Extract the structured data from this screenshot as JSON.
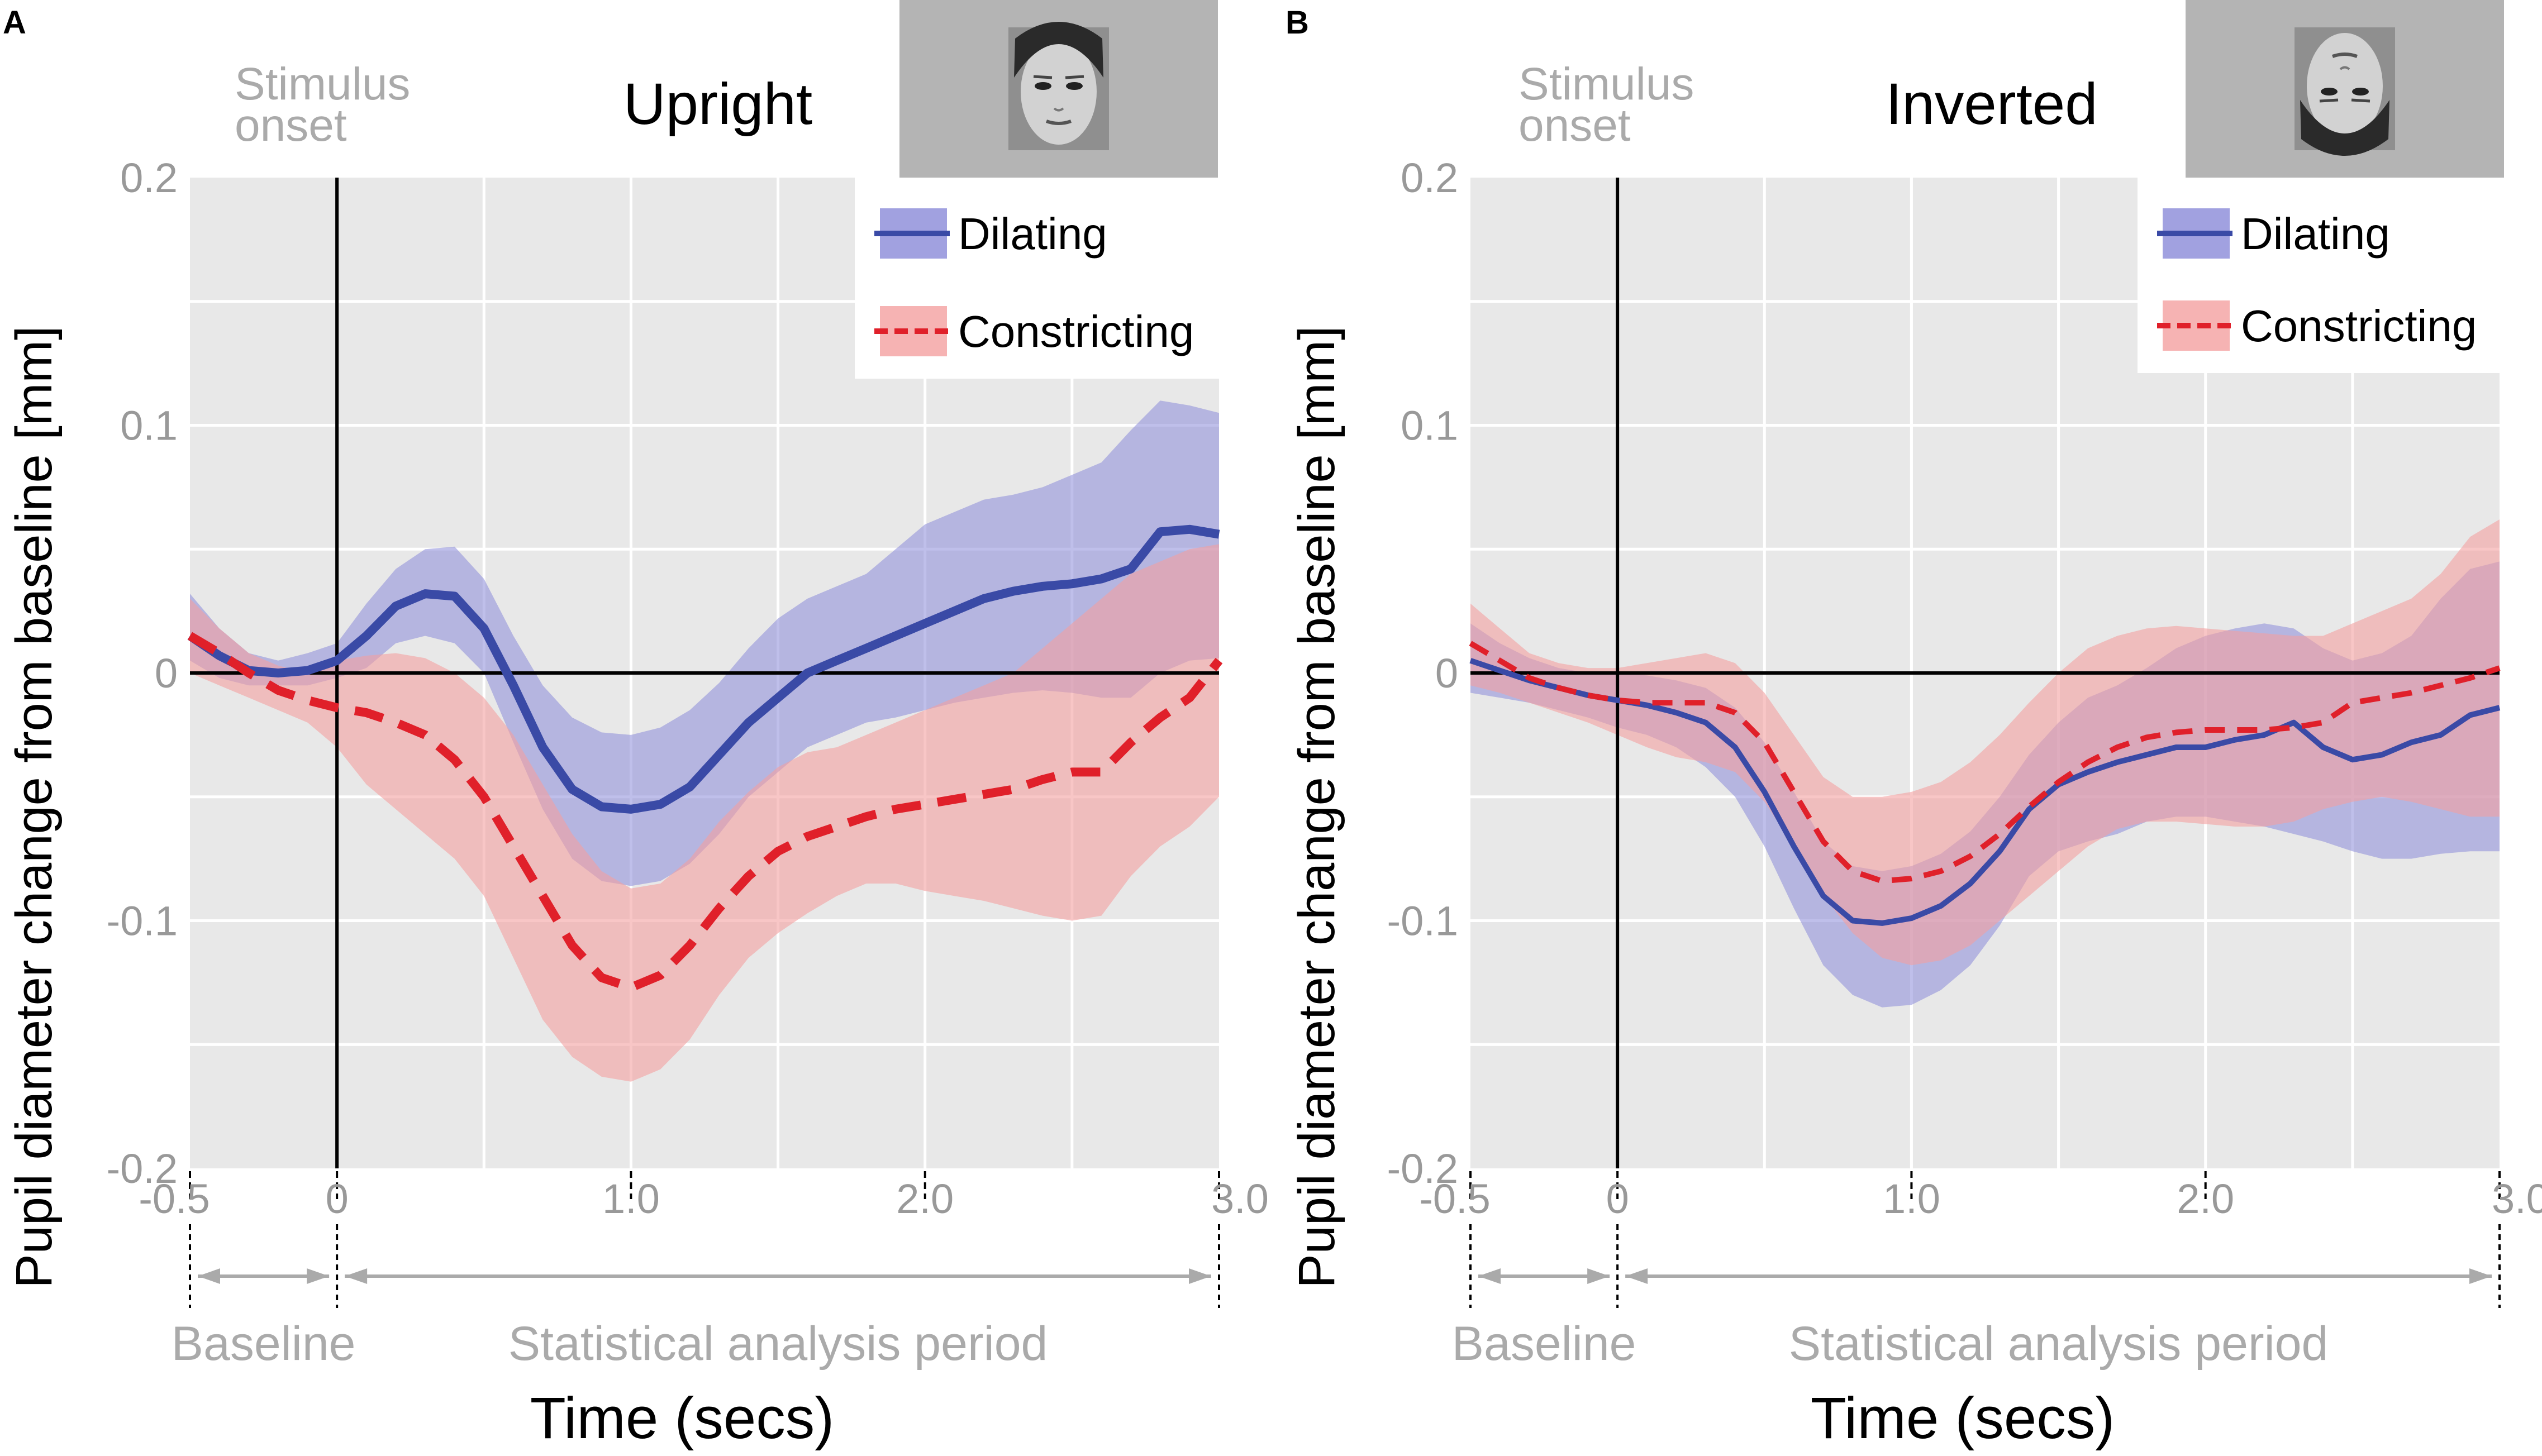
{
  "colors": {
    "dilating": "#3a4aa6",
    "dilating_band": "#8a8ad8",
    "constricting": "#e0202a",
    "constricting_band": "#f4a0a0",
    "plot_bg": "#e8e8e8",
    "grid": "#ffffff",
    "muted_text": "#aaaaaa"
  },
  "chart_data": [
    {
      "type": "line",
      "panel": "A",
      "title": "Upright",
      "stimulus_image": "upright-face-photo",
      "onset_label": [
        "Stimulus",
        "onset"
      ],
      "xlabel": "Time (secs)",
      "ylabel": "Pupil diameter change from baseline [mm]",
      "xlim": [
        -0.5,
        3.0
      ],
      "ylim": [
        -0.2,
        0.2
      ],
      "xticks": [
        {
          "value": -0.5,
          "label": "-0.5"
        },
        {
          "value": 0,
          "label": "0"
        },
        {
          "value": 1.0,
          "label": "1.0"
        },
        {
          "value": 2.0,
          "label": "2.0"
        },
        {
          "value": 3.0,
          "label": "3.0"
        }
      ],
      "yticks": [
        {
          "value": 0.2,
          "label": "0.2"
        },
        {
          "value": 0.1,
          "label": "0.1"
        },
        {
          "value": 0,
          "label": "0"
        },
        {
          "value": -0.1,
          "label": "-0.1"
        },
        {
          "value": -0.2,
          "label": "-0.2"
        }
      ],
      "x_gridlines": [
        0.5,
        1.0,
        1.5,
        2.0,
        2.5
      ],
      "y_gridlines": [
        0.15,
        0.1,
        0.05,
        -0.05,
        -0.1,
        -0.15
      ],
      "periods": [
        {
          "label": "Baseline",
          "from": -0.5,
          "to": 0
        },
        {
          "label": "Statistical analysis period",
          "from": 0,
          "to": 3.0
        }
      ],
      "legend": {
        "position": "top-right",
        "dilating": "Dilating",
        "constricting": "Constricting"
      },
      "series": [
        {
          "name": "Dilating",
          "style": "solid",
          "x": [
            -0.5,
            -0.4,
            -0.3,
            -0.2,
            -0.1,
            0,
            0.1,
            0.2,
            0.3,
            0.4,
            0.5,
            0.6,
            0.7,
            0.8,
            0.9,
            1.0,
            1.1,
            1.2,
            1.3,
            1.4,
            1.5,
            1.6,
            1.7,
            1.8,
            1.9,
            2.0,
            2.1,
            2.2,
            2.3,
            2.4,
            2.5,
            2.6,
            2.7,
            2.8,
            2.9,
            3.0
          ],
          "y": [
            0.015,
            0.007,
            0.001,
            0.0,
            0.001,
            0.005,
            0.015,
            0.027,
            0.032,
            0.031,
            0.018,
            -0.005,
            -0.03,
            -0.047,
            -0.054,
            -0.055,
            -0.053,
            -0.046,
            -0.033,
            -0.02,
            -0.01,
            0.0,
            0.005,
            0.01,
            0.015,
            0.02,
            0.025,
            0.03,
            0.033,
            0.035,
            0.036,
            0.038,
            0.042,
            0.057,
            0.058,
            0.056
          ],
          "upper": [
            0.032,
            0.018,
            0.008,
            0.005,
            0.008,
            0.012,
            0.028,
            0.042,
            0.05,
            0.051,
            0.038,
            0.015,
            -0.005,
            -0.018,
            -0.024,
            -0.025,
            -0.022,
            -0.015,
            -0.004,
            0.01,
            0.022,
            0.03,
            0.035,
            0.04,
            0.05,
            0.06,
            0.065,
            0.07,
            0.072,
            0.075,
            0.08,
            0.085,
            0.098,
            0.11,
            0.108,
            0.105
          ],
          "lower": [
            0.005,
            -0.002,
            -0.005,
            -0.005,
            -0.005,
            -0.002,
            0.002,
            0.012,
            0.015,
            0.012,
            0.0,
            -0.028,
            -0.055,
            -0.075,
            -0.084,
            -0.086,
            -0.084,
            -0.077,
            -0.065,
            -0.05,
            -0.04,
            -0.03,
            -0.025,
            -0.02,
            -0.018,
            -0.015,
            -0.012,
            -0.01,
            -0.008,
            -0.007,
            -0.008,
            -0.01,
            -0.01,
            0.0,
            0.005,
            0.006
          ]
        },
        {
          "name": "Constricting",
          "style": "dashed",
          "x": [
            -0.5,
            -0.4,
            -0.3,
            -0.2,
            -0.1,
            0,
            0.1,
            0.2,
            0.3,
            0.4,
            0.5,
            0.6,
            0.7,
            0.8,
            0.9,
            1.0,
            1.1,
            1.2,
            1.3,
            1.4,
            1.5,
            1.6,
            1.7,
            1.8,
            1.9,
            2.0,
            2.1,
            2.2,
            2.3,
            2.4,
            2.5,
            2.6,
            2.7,
            2.8,
            2.9,
            3.0
          ],
          "y": [
            0.015,
            0.008,
            0.0,
            -0.007,
            -0.011,
            -0.014,
            -0.016,
            -0.02,
            -0.025,
            -0.035,
            -0.05,
            -0.07,
            -0.09,
            -0.11,
            -0.123,
            -0.127,
            -0.122,
            -0.11,
            -0.095,
            -0.082,
            -0.072,
            -0.066,
            -0.062,
            -0.058,
            -0.055,
            -0.053,
            -0.051,
            -0.049,
            -0.047,
            -0.043,
            -0.04,
            -0.04,
            -0.028,
            -0.018,
            -0.01,
            0.005
          ],
          "upper": [
            0.03,
            0.018,
            0.008,
            0.003,
            0.0,
            0.005,
            0.007,
            0.008,
            0.006,
            0.0,
            -0.01,
            -0.025,
            -0.045,
            -0.065,
            -0.08,
            -0.087,
            -0.085,
            -0.075,
            -0.06,
            -0.048,
            -0.038,
            -0.032,
            -0.03,
            -0.025,
            -0.02,
            -0.015,
            -0.01,
            -0.005,
            0.0,
            0.01,
            0.02,
            0.03,
            0.04,
            0.045,
            0.05,
            0.052
          ],
          "lower": [
            0.0,
            -0.005,
            -0.01,
            -0.015,
            -0.02,
            -0.03,
            -0.045,
            -0.055,
            -0.065,
            -0.075,
            -0.09,
            -0.115,
            -0.14,
            -0.155,
            -0.163,
            -0.165,
            -0.16,
            -0.148,
            -0.13,
            -0.115,
            -0.105,
            -0.097,
            -0.09,
            -0.085,
            -0.085,
            -0.088,
            -0.09,
            -0.092,
            -0.095,
            -0.098,
            -0.1,
            -0.098,
            -0.082,
            -0.07,
            -0.062,
            -0.05
          ]
        }
      ]
    },
    {
      "type": "line",
      "panel": "B",
      "title": "Inverted",
      "stimulus_image": "inverted-face-photo",
      "onset_label": [
        "Stimulus",
        "onset"
      ],
      "xlabel": "Time (secs)",
      "ylabel": "Pupil diameter change from baseline [mm]",
      "xlim": [
        -0.5,
        3.0
      ],
      "ylim": [
        -0.2,
        0.2
      ],
      "xticks": [
        {
          "value": -0.5,
          "label": "-0.5"
        },
        {
          "value": 0,
          "label": "0"
        },
        {
          "value": 1.0,
          "label": "1.0"
        },
        {
          "value": 2.0,
          "label": "2.0"
        },
        {
          "value": 3.0,
          "label": "3.0"
        }
      ],
      "yticks": [
        {
          "value": 0.2,
          "label": "0.2"
        },
        {
          "value": 0.1,
          "label": "0.1"
        },
        {
          "value": 0,
          "label": "0"
        },
        {
          "value": -0.1,
          "label": "-0.1"
        },
        {
          "value": -0.2,
          "label": "-0.2"
        }
      ],
      "x_gridlines": [
        0.5,
        1.0,
        1.5,
        2.0,
        2.5
      ],
      "y_gridlines": [
        0.15,
        0.1,
        0.05,
        -0.05,
        -0.1,
        -0.15
      ],
      "periods": [
        {
          "label": "Baseline",
          "from": -0.5,
          "to": 0
        },
        {
          "label": "Statistical analysis period",
          "from": 0,
          "to": 3.0
        }
      ],
      "legend": {
        "position": "top-right",
        "dilating": "Dilating",
        "constricting": "Constricting"
      },
      "series": [
        {
          "name": "Dilating",
          "style": "solid",
          "x": [
            -0.5,
            -0.4,
            -0.3,
            -0.2,
            -0.1,
            0,
            0.1,
            0.2,
            0.3,
            0.4,
            0.5,
            0.6,
            0.7,
            0.8,
            0.9,
            1.0,
            1.1,
            1.2,
            1.3,
            1.4,
            1.5,
            1.6,
            1.7,
            1.8,
            1.9,
            2.0,
            2.1,
            2.2,
            2.3,
            2.4,
            2.5,
            2.6,
            2.7,
            2.8,
            2.9,
            3.0
          ],
          "y": [
            0.005,
            0.001,
            -0.003,
            -0.006,
            -0.009,
            -0.011,
            -0.013,
            -0.016,
            -0.02,
            -0.03,
            -0.048,
            -0.07,
            -0.09,
            -0.1,
            -0.101,
            -0.099,
            -0.094,
            -0.085,
            -0.072,
            -0.055,
            -0.045,
            -0.04,
            -0.036,
            -0.033,
            -0.03,
            -0.03,
            -0.027,
            -0.025,
            -0.02,
            -0.03,
            -0.035,
            -0.033,
            -0.028,
            -0.025,
            -0.017,
            -0.014
          ],
          "upper": [
            0.02,
            0.012,
            0.006,
            0.002,
            0.0,
            0.0,
            -0.001,
            -0.003,
            -0.006,
            -0.014,
            -0.028,
            -0.048,
            -0.068,
            -0.078,
            -0.08,
            -0.078,
            -0.073,
            -0.064,
            -0.05,
            -0.033,
            -0.02,
            -0.01,
            -0.005,
            0.002,
            0.01,
            0.015,
            0.018,
            0.02,
            0.018,
            0.01,
            0.005,
            0.008,
            0.015,
            0.03,
            0.042,
            0.045
          ],
          "lower": [
            -0.008,
            -0.01,
            -0.012,
            -0.015,
            -0.018,
            -0.022,
            -0.025,
            -0.03,
            -0.038,
            -0.05,
            -0.07,
            -0.095,
            -0.118,
            -0.13,
            -0.135,
            -0.134,
            -0.128,
            -0.118,
            -0.102,
            -0.082,
            -0.072,
            -0.068,
            -0.065,
            -0.06,
            -0.058,
            -0.058,
            -0.06,
            -0.062,
            -0.065,
            -0.068,
            -0.072,
            -0.075,
            -0.075,
            -0.073,
            -0.072,
            -0.072
          ]
        },
        {
          "name": "Constricting",
          "style": "dashed",
          "x": [
            -0.5,
            -0.4,
            -0.3,
            -0.2,
            -0.1,
            0,
            0.1,
            0.2,
            0.3,
            0.4,
            0.5,
            0.6,
            0.7,
            0.8,
            0.9,
            1.0,
            1.1,
            1.2,
            1.3,
            1.4,
            1.5,
            1.6,
            1.7,
            1.8,
            1.9,
            2.0,
            2.1,
            2.2,
            2.3,
            2.4,
            2.5,
            2.6,
            2.7,
            2.8,
            2.9,
            3.0
          ],
          "y": [
            0.012,
            0.005,
            -0.002,
            -0.006,
            -0.009,
            -0.011,
            -0.012,
            -0.012,
            -0.012,
            -0.016,
            -0.028,
            -0.048,
            -0.068,
            -0.08,
            -0.084,
            -0.083,
            -0.08,
            -0.074,
            -0.065,
            -0.054,
            -0.044,
            -0.036,
            -0.03,
            -0.026,
            -0.024,
            -0.023,
            -0.023,
            -0.023,
            -0.022,
            -0.02,
            -0.012,
            -0.01,
            -0.008,
            -0.005,
            -0.002,
            0.002
          ],
          "upper": [
            0.028,
            0.018,
            0.008,
            0.004,
            0.002,
            0.002,
            0.004,
            0.006,
            0.008,
            0.004,
            -0.008,
            -0.025,
            -0.042,
            -0.05,
            -0.05,
            -0.048,
            -0.044,
            -0.036,
            -0.025,
            -0.012,
            0.0,
            0.01,
            0.015,
            0.018,
            0.019,
            0.018,
            0.017,
            0.016,
            0.015,
            0.015,
            0.02,
            0.025,
            0.03,
            0.04,
            0.055,
            0.062
          ],
          "lower": [
            -0.005,
            -0.008,
            -0.012,
            -0.016,
            -0.02,
            -0.025,
            -0.03,
            -0.034,
            -0.036,
            -0.04,
            -0.052,
            -0.07,
            -0.09,
            -0.105,
            -0.115,
            -0.118,
            -0.116,
            -0.11,
            -0.1,
            -0.09,
            -0.08,
            -0.07,
            -0.063,
            -0.06,
            -0.06,
            -0.061,
            -0.062,
            -0.062,
            -0.06,
            -0.055,
            -0.052,
            -0.05,
            -0.052,
            -0.055,
            -0.058,
            -0.058
          ]
        }
      ]
    }
  ]
}
